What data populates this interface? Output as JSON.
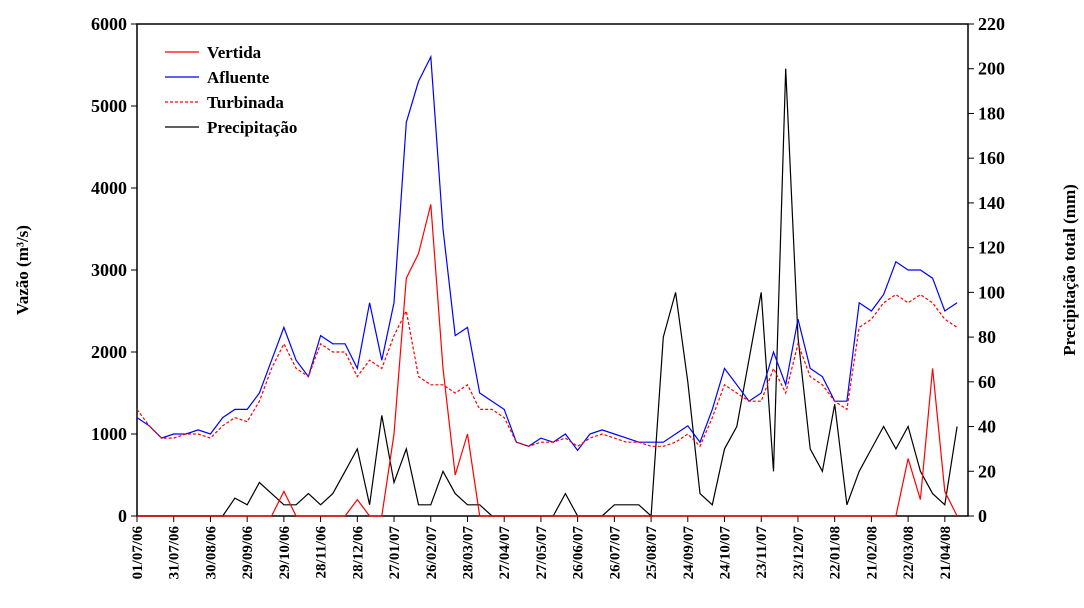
{
  "chart_data": {
    "type": "line",
    "y_label": "Vazão (m³/s)",
    "y2_label": "Precipitação total (mm)",
    "categories": [
      "01/07/06",
      null,
      null,
      "31/07/06",
      null,
      null,
      "30/08/06",
      null,
      null,
      "29/09/06",
      null,
      null,
      "29/10/06",
      null,
      null,
      "28/11/06",
      null,
      null,
      "28/12/06",
      null,
      null,
      "27/01/07",
      null,
      null,
      "26/02/07",
      null,
      null,
      "28/03/07",
      null,
      null,
      "27/04/07",
      null,
      null,
      "27/05/07",
      null,
      null,
      "26/06/07",
      null,
      null,
      "26/07/07",
      null,
      null,
      "25/08/07",
      null,
      null,
      "24/09/07",
      null,
      null,
      "24/10/07",
      null,
      null,
      "23/11/07",
      null,
      null,
      "23/12/07",
      null,
      null,
      "22/01/08",
      null,
      null,
      "21/02/08",
      null,
      null,
      "22/03/08",
      null,
      null,
      "21/04/08",
      null
    ],
    "series": [
      {
        "name": "Vertida",
        "color": "#ff0000",
        "dash": false,
        "values": [
          0,
          0,
          0,
          0,
          0,
          0,
          0,
          0,
          0,
          0,
          0,
          0,
          300,
          0,
          0,
          0,
          0,
          0,
          200,
          0,
          0,
          1000,
          2900,
          3200,
          3800,
          1800,
          500,
          1000,
          0,
          0,
          0,
          0,
          0,
          0,
          0,
          0,
          0,
          0,
          0,
          0,
          0,
          0,
          0,
          0,
          0,
          0,
          0,
          0,
          0,
          0,
          0,
          0,
          0,
          0,
          0,
          0,
          0,
          0,
          0,
          0,
          0,
          0,
          0,
          700,
          200,
          1800,
          300,
          0
        ]
      },
      {
        "name": "Afluente",
        "color": "#0000ff",
        "dash": false,
        "values": [
          1200,
          1100,
          950,
          1000,
          1000,
          1050,
          1000,
          1200,
          1300,
          1300,
          1500,
          1900,
          2300,
          1900,
          1700,
          2200,
          2100,
          2100,
          1800,
          2600,
          1900,
          2600,
          4800,
          5300,
          5600,
          3500,
          2200,
          2300,
          1500,
          1400,
          1300,
          900,
          850,
          950,
          900,
          1000,
          800,
          1000,
          1050,
          1000,
          950,
          900,
          900,
          900,
          1000,
          1100,
          900,
          1300,
          1800,
          1600,
          1400,
          1500,
          2000,
          1600,
          2400,
          1800,
          1700,
          1400,
          1400,
          2600,
          2500,
          2700,
          3100,
          3000,
          3000,
          2900,
          2500,
          2600
        ]
      },
      {
        "name": "Turbinada",
        "color": "#ff0000",
        "dash": true,
        "values": [
          1300,
          1100,
          950,
          950,
          1000,
          1000,
          950,
          1100,
          1200,
          1150,
          1400,
          1800,
          2100,
          1800,
          1700,
          2100,
          2000,
          2000,
          1700,
          1900,
          1800,
          2200,
          2500,
          1700,
          1600,
          1600,
          1500,
          1600,
          1300,
          1300,
          1200,
          900,
          850,
          900,
          900,
          950,
          850,
          950,
          1000,
          950,
          900,
          900,
          850,
          850,
          900,
          1000,
          850,
          1200,
          1600,
          1500,
          1400,
          1400,
          1800,
          1500,
          2100,
          1700,
          1600,
          1400,
          1300,
          2300,
          2400,
          2600,
          2700,
          2600,
          2700,
          2600,
          2400,
          2300
        ]
      },
      {
        "name": "Precipitação",
        "color": "#000000",
        "dash": false,
        "axis": "y2",
        "values": [
          0,
          0,
          0,
          0,
          0,
          0,
          0,
          0,
          8,
          5,
          15,
          10,
          5,
          5,
          10,
          5,
          10,
          20,
          30,
          5,
          45,
          15,
          30,
          5,
          5,
          20,
          10,
          5,
          5,
          0,
          0,
          0,
          0,
          0,
          0,
          10,
          0,
          0,
          0,
          5,
          5,
          5,
          0,
          80,
          100,
          60,
          10,
          5,
          30,
          40,
          70,
          100,
          20,
          200,
          80,
          30,
          20,
          50,
          5,
          20,
          30,
          40,
          30,
          40,
          20,
          10,
          5,
          40
        ]
      }
    ],
    "ylim": [
      0,
      6000
    ],
    "yticks": [
      0,
      1000,
      2000,
      3000,
      4000,
      5000,
      6000
    ],
    "y2lim": [
      0,
      220
    ],
    "y2ticks": [
      0,
      20,
      40,
      60,
      80,
      100,
      120,
      140,
      160,
      180,
      200,
      220
    ],
    "legend": "upper-left",
    "grid": false
  }
}
